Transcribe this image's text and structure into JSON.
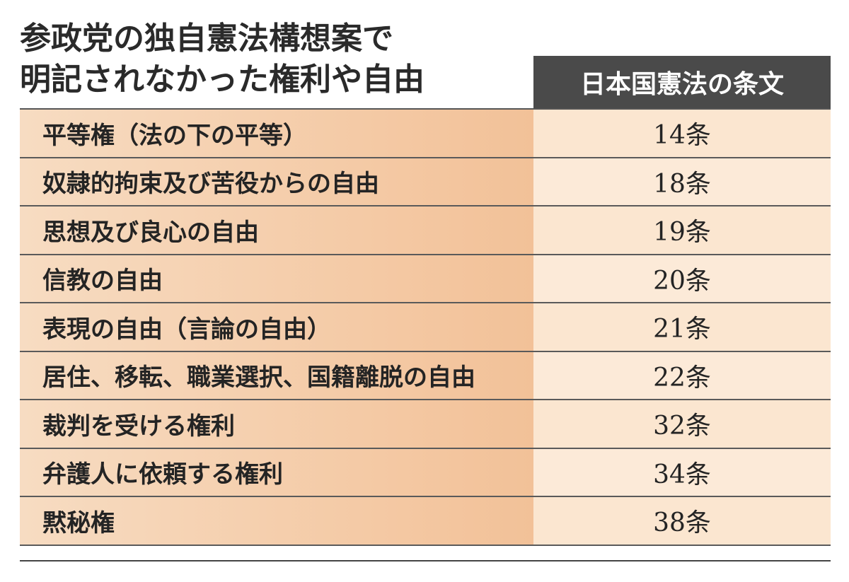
{
  "title": {
    "line1": "参政党の独自憲法構想案で",
    "line2": "明記されなかった権利や自由"
  },
  "table": {
    "column_header": "日本国憲法の条文",
    "rows": [
      {
        "right": "平等権（法の下の平等）",
        "article": "14条"
      },
      {
        "right": "奴隷的拘束及び苦役からの自由",
        "article": "18条"
      },
      {
        "right": "思想及び良心の自由",
        "article": "19条"
      },
      {
        "right": "信教の自由",
        "article": "20条"
      },
      {
        "right": "表現の自由（言論の自由）",
        "article": "21条"
      },
      {
        "right": "居住、移転、職業選択、国籍離脱の自由",
        "article": "22条"
      },
      {
        "right": "裁判を受ける権利",
        "article": "32条"
      },
      {
        "right": "弁護人に依頼する権利",
        "article": "34条"
      },
      {
        "right": "黙秘権",
        "article": "38条"
      }
    ]
  },
  "colors": {
    "header_bg": "#4a4a4a",
    "left_cell": "#f4c9a4",
    "right_cell": "#fbe6d0"
  }
}
